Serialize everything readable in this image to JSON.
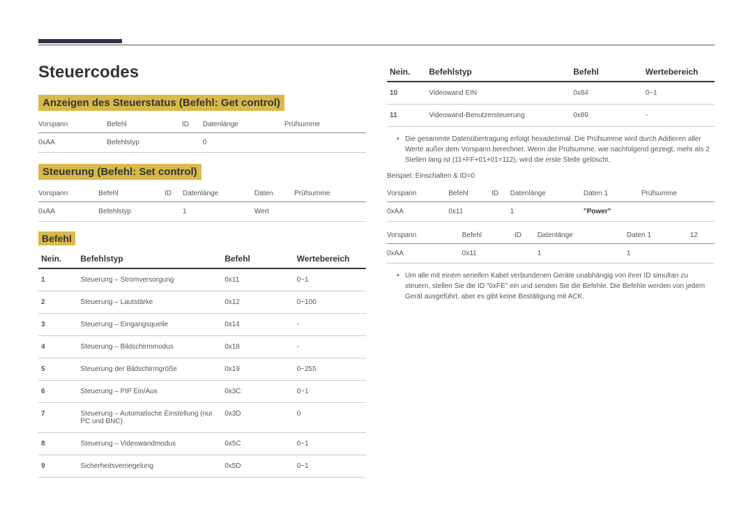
{
  "title": "Steuercodes",
  "section1": {
    "heading": "Anzeigen des Steuerstatus (Befehl: Get control)",
    "headers": [
      "Vorspann",
      "Befehl",
      "ID",
      "Datenlänge",
      "Prüfsumme"
    ],
    "row": [
      "0xAA",
      "Befehlstyp",
      "",
      "0",
      ""
    ]
  },
  "section2": {
    "heading": "Steuerung (Befehl: Set control)",
    "headers": [
      "Vorspann",
      "Befehl",
      "ID",
      "Datenlänge",
      "Daten",
      "Prüfsumme"
    ],
    "row": [
      "0xAA",
      "Befehlstyp",
      "",
      "1",
      "Wert",
      ""
    ]
  },
  "befehl_heading": "Befehl",
  "cmd_headers": [
    "Nein.",
    "Befehlstyp",
    "Befehl",
    "Wertebereich"
  ],
  "cmds_left": [
    {
      "n": "1",
      "t": "Steuerung – Stromversorgung",
      "c": "0x11",
      "r": "0~1"
    },
    {
      "n": "2",
      "t": "Steuerung – Lautstärke",
      "c": "0x12",
      "r": "0~100"
    },
    {
      "n": "3",
      "t": "Steuerung – Eingangsquelle",
      "c": "0x14",
      "r": "-"
    },
    {
      "n": "4",
      "t": "Steuerung – Bildschirmmodus",
      "c": "0x18",
      "r": "-"
    },
    {
      "n": "5",
      "t": "Steuerung der Bildschirmgröße",
      "c": "0x19",
      "r": "0~255"
    },
    {
      "n": "6",
      "t": "Steuerung – PIP Ein/Aus",
      "c": "0x3C",
      "r": "0~1"
    },
    {
      "n": "7",
      "t": "Steuerung – Automatische Einstellung (nur PC und BNC)",
      "c": "0x3D",
      "r": "0"
    },
    {
      "n": "8",
      "t": "Steuerung – Videowandmodus",
      "c": "0x5C",
      "r": "0~1"
    },
    {
      "n": "9",
      "t": "Sicherheitsverriegelung",
      "c": "0x5D",
      "r": "0~1"
    }
  ],
  "cmds_right": [
    {
      "n": "10",
      "t": "Videowand EIN",
      "c": "0x84",
      "r": "0~1"
    },
    {
      "n": "11",
      "t": "Videowand-Benutzersteuerung",
      "c": "0x89",
      "r": "-"
    }
  ],
  "bullet1": "Die gesammte Datenübertragung erfolgt hexadezimal. Die Prüfsumme wird durch Addieren aller Werte außer dem Vorspann berechnet. Wenn die Prüfsumme, wie nachfolgend gezeigt, mehr als 2 Stellen lang ist (11+FF+01+01=112), wird die erste Stelle gelöscht.",
  "example_label": "Beispiel: Einschalten & ID=0",
  "ex1": {
    "headers": [
      "Vorspann",
      "Befehl",
      "ID",
      "Datenlänge",
      "Daten 1",
      "Prüfsumme"
    ],
    "row": [
      "0xAA",
      "0x11",
      "",
      "1",
      "\"Power\"",
      ""
    ]
  },
  "ex2": {
    "headers": [
      "Vorspann",
      "Befehl",
      "ID",
      "Datenlänge",
      "Daten 1",
      "12"
    ],
    "row": [
      "0xAA",
      "0x11",
      "",
      "1",
      "1",
      ""
    ]
  },
  "bullet2": "Um alle mit einem seriellen Kabel verbundenen Geräte unabhängig von ihrer ID simultan zu steuern, stellen Sie die ID \"0xFE\" ein und senden Sie die Befehle. Die Befehle werden von jedem Gerät ausgeführt, aber es gibt keine Bestätigung mit ACK."
}
